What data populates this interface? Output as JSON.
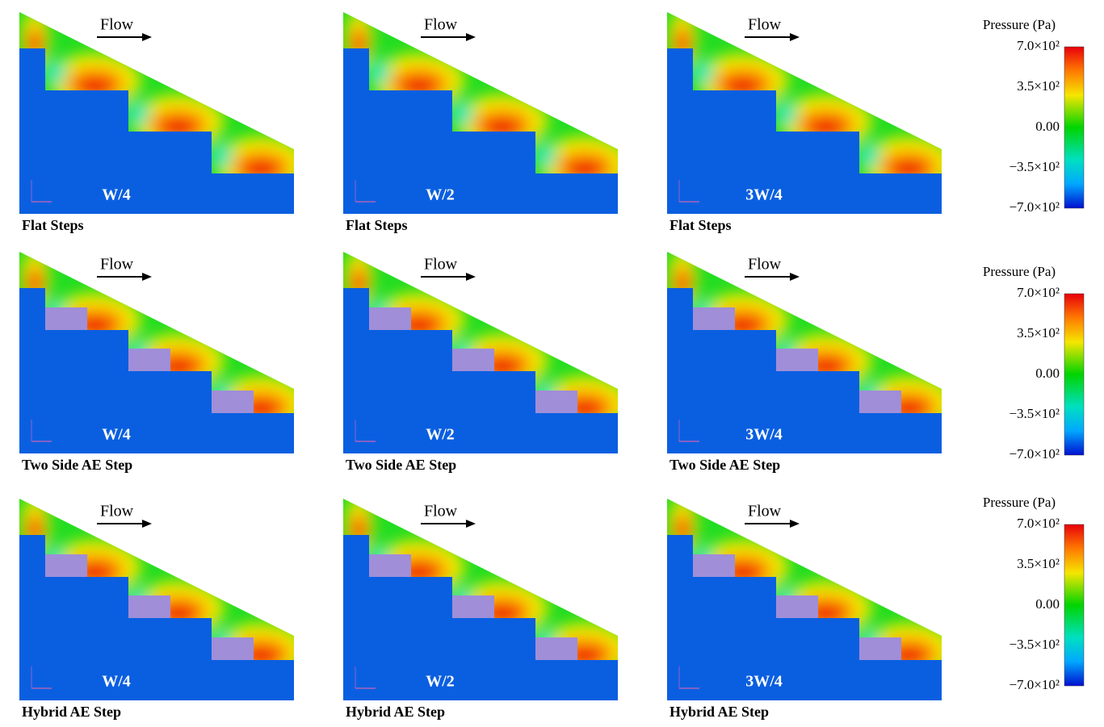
{
  "panels": [
    {
      "flow": "Flow",
      "label": "W/4",
      "caption": "Flat Steps"
    },
    {
      "flow": "Flow",
      "label": "W/2",
      "caption": "Flat Steps"
    },
    {
      "flow": "Flow",
      "label": "3W/4",
      "caption": "Flat Steps"
    },
    {
      "flow": "Flow",
      "label": "W/4",
      "caption": "Two Side AE Step"
    },
    {
      "flow": "Flow",
      "label": "W/2",
      "caption": "Two Side AE Step"
    },
    {
      "flow": "Flow",
      "label": "3W/4",
      "caption": "Two Side AE Step"
    },
    {
      "flow": "Flow",
      "label": "W/4",
      "caption": "Hybrid AE Step"
    },
    {
      "flow": "Flow",
      "label": "W/2",
      "caption": "Hybrid AE Step"
    },
    {
      "flow": "Flow",
      "label": "3W/4",
      "caption": "Hybrid AE Step"
    }
  ],
  "colorbars": [
    {
      "title": "Pressure (Pa)",
      "ticks": [
        "7.0×10²",
        "3.5×10²",
        "0.00",
        "−3.5×10²",
        "−7.0×10²"
      ]
    },
    {
      "title": "Pressure (Pa)",
      "ticks": [
        "7.0×10²",
        "3.5×10²",
        "0.00",
        "−3.5×10²",
        "−7.0×10²"
      ]
    },
    {
      "title": "Pressure (Pa)",
      "ticks": [
        "7.0×10²",
        "3.5×10²",
        "0.00",
        "−3.5×10²",
        "−7.0×10²"
      ]
    }
  ]
}
